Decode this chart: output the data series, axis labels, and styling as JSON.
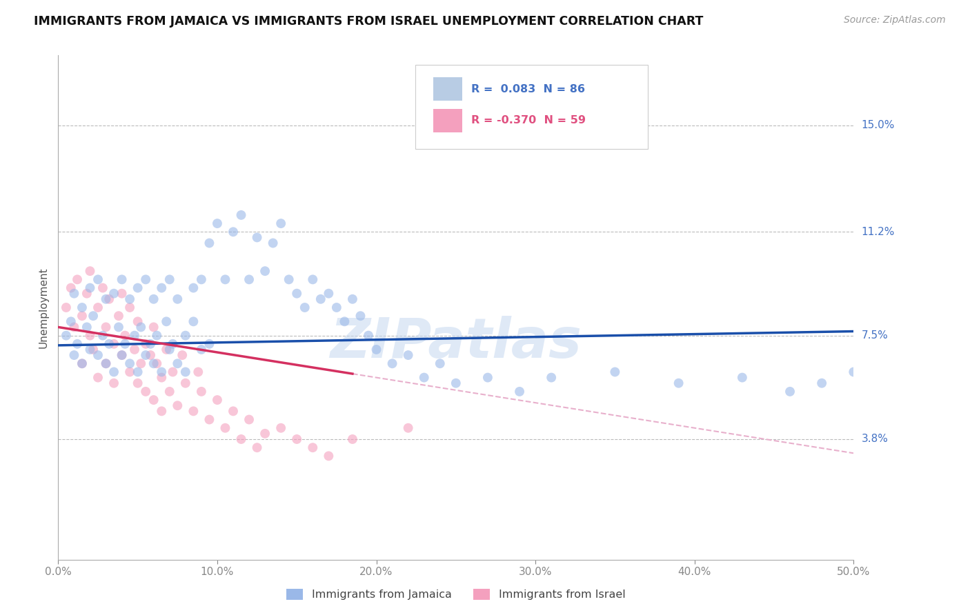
{
  "title": "IMMIGRANTS FROM JAMAICA VS IMMIGRANTS FROM ISRAEL UNEMPLOYMENT CORRELATION CHART",
  "source": "Source: ZipAtlas.com",
  "ylabel": "Unemployment",
  "xlim": [
    0.0,
    0.5
  ],
  "ylim": [
    -0.005,
    0.175
  ],
  "yticks": [
    0.038,
    0.075,
    0.112,
    0.15
  ],
  "ytick_labels": [
    "3.8%",
    "7.5%",
    "11.2%",
    "15.0%"
  ],
  "xticks": [
    0.0,
    0.1,
    0.2,
    0.3,
    0.4,
    0.5
  ],
  "xtick_labels": [
    "0.0%",
    "10.0%",
    "20.0%",
    "30.0%",
    "40.0%",
    "50.0%"
  ],
  "background_color": "#ffffff",
  "grid_color": "#bbbbbb",
  "watermark": "ZIPatlas",
  "legend_r1": "R =  0.083",
  "legend_n1": "N = 86",
  "legend_r2": "R = -0.370",
  "legend_n2": "N = 59",
  "legend_color1": "#4472c4",
  "legend_color2": "#e05080",
  "scatter_color1": "#9ab8e8",
  "scatter_color2": "#f4a0be",
  "line_color1": "#1a4faa",
  "line_color2": "#d43060",
  "line_color2_dashed": "#e8b0cc",
  "scatter_alpha": 0.6,
  "scatter_size": 100,
  "title_color": "#111111",
  "axis_color": "#4472c4",
  "jamaica_x": [
    0.005,
    0.008,
    0.01,
    0.01,
    0.012,
    0.015,
    0.015,
    0.018,
    0.02,
    0.02,
    0.022,
    0.025,
    0.025,
    0.028,
    0.03,
    0.03,
    0.032,
    0.035,
    0.035,
    0.038,
    0.04,
    0.04,
    0.042,
    0.045,
    0.045,
    0.048,
    0.05,
    0.05,
    0.052,
    0.055,
    0.055,
    0.058,
    0.06,
    0.06,
    0.062,
    0.065,
    0.065,
    0.068,
    0.07,
    0.07,
    0.072,
    0.075,
    0.075,
    0.08,
    0.08,
    0.085,
    0.085,
    0.09,
    0.09,
    0.095,
    0.095,
    0.1,
    0.105,
    0.11,
    0.115,
    0.12,
    0.125,
    0.13,
    0.135,
    0.14,
    0.145,
    0.15,
    0.155,
    0.16,
    0.165,
    0.17,
    0.175,
    0.18,
    0.185,
    0.19,
    0.195,
    0.2,
    0.21,
    0.22,
    0.23,
    0.24,
    0.25,
    0.27,
    0.29,
    0.31,
    0.35,
    0.39,
    0.43,
    0.46,
    0.48,
    0.5
  ],
  "jamaica_y": [
    0.075,
    0.08,
    0.068,
    0.09,
    0.072,
    0.065,
    0.085,
    0.078,
    0.07,
    0.092,
    0.082,
    0.068,
    0.095,
    0.075,
    0.065,
    0.088,
    0.072,
    0.062,
    0.09,
    0.078,
    0.068,
    0.095,
    0.072,
    0.065,
    0.088,
    0.075,
    0.062,
    0.092,
    0.078,
    0.068,
    0.095,
    0.072,
    0.065,
    0.088,
    0.075,
    0.062,
    0.092,
    0.08,
    0.07,
    0.095,
    0.072,
    0.065,
    0.088,
    0.075,
    0.062,
    0.092,
    0.08,
    0.07,
    0.095,
    0.072,
    0.108,
    0.115,
    0.095,
    0.112,
    0.118,
    0.095,
    0.11,
    0.098,
    0.108,
    0.115,
    0.095,
    0.09,
    0.085,
    0.095,
    0.088,
    0.09,
    0.085,
    0.08,
    0.088,
    0.082,
    0.075,
    0.07,
    0.065,
    0.068,
    0.06,
    0.065,
    0.058,
    0.06,
    0.055,
    0.06,
    0.062,
    0.058,
    0.06,
    0.055,
    0.058,
    0.062
  ],
  "israel_x": [
    0.005,
    0.008,
    0.01,
    0.012,
    0.015,
    0.015,
    0.018,
    0.02,
    0.02,
    0.022,
    0.025,
    0.025,
    0.028,
    0.03,
    0.03,
    0.032,
    0.035,
    0.035,
    0.038,
    0.04,
    0.04,
    0.042,
    0.045,
    0.045,
    0.048,
    0.05,
    0.05,
    0.052,
    0.055,
    0.055,
    0.058,
    0.06,
    0.06,
    0.062,
    0.065,
    0.065,
    0.068,
    0.07,
    0.072,
    0.075,
    0.078,
    0.08,
    0.085,
    0.088,
    0.09,
    0.095,
    0.1,
    0.105,
    0.11,
    0.115,
    0.12,
    0.125,
    0.13,
    0.14,
    0.15,
    0.16,
    0.17,
    0.185,
    0.22
  ],
  "israel_y": [
    0.085,
    0.092,
    0.078,
    0.095,
    0.082,
    0.065,
    0.09,
    0.075,
    0.098,
    0.07,
    0.085,
    0.06,
    0.092,
    0.078,
    0.065,
    0.088,
    0.072,
    0.058,
    0.082,
    0.068,
    0.09,
    0.075,
    0.062,
    0.085,
    0.07,
    0.058,
    0.08,
    0.065,
    0.072,
    0.055,
    0.068,
    0.078,
    0.052,
    0.065,
    0.06,
    0.048,
    0.07,
    0.055,
    0.062,
    0.05,
    0.068,
    0.058,
    0.048,
    0.062,
    0.055,
    0.045,
    0.052,
    0.042,
    0.048,
    0.038,
    0.045,
    0.035,
    0.04,
    0.042,
    0.038,
    0.035,
    0.032,
    0.038,
    0.042
  ]
}
